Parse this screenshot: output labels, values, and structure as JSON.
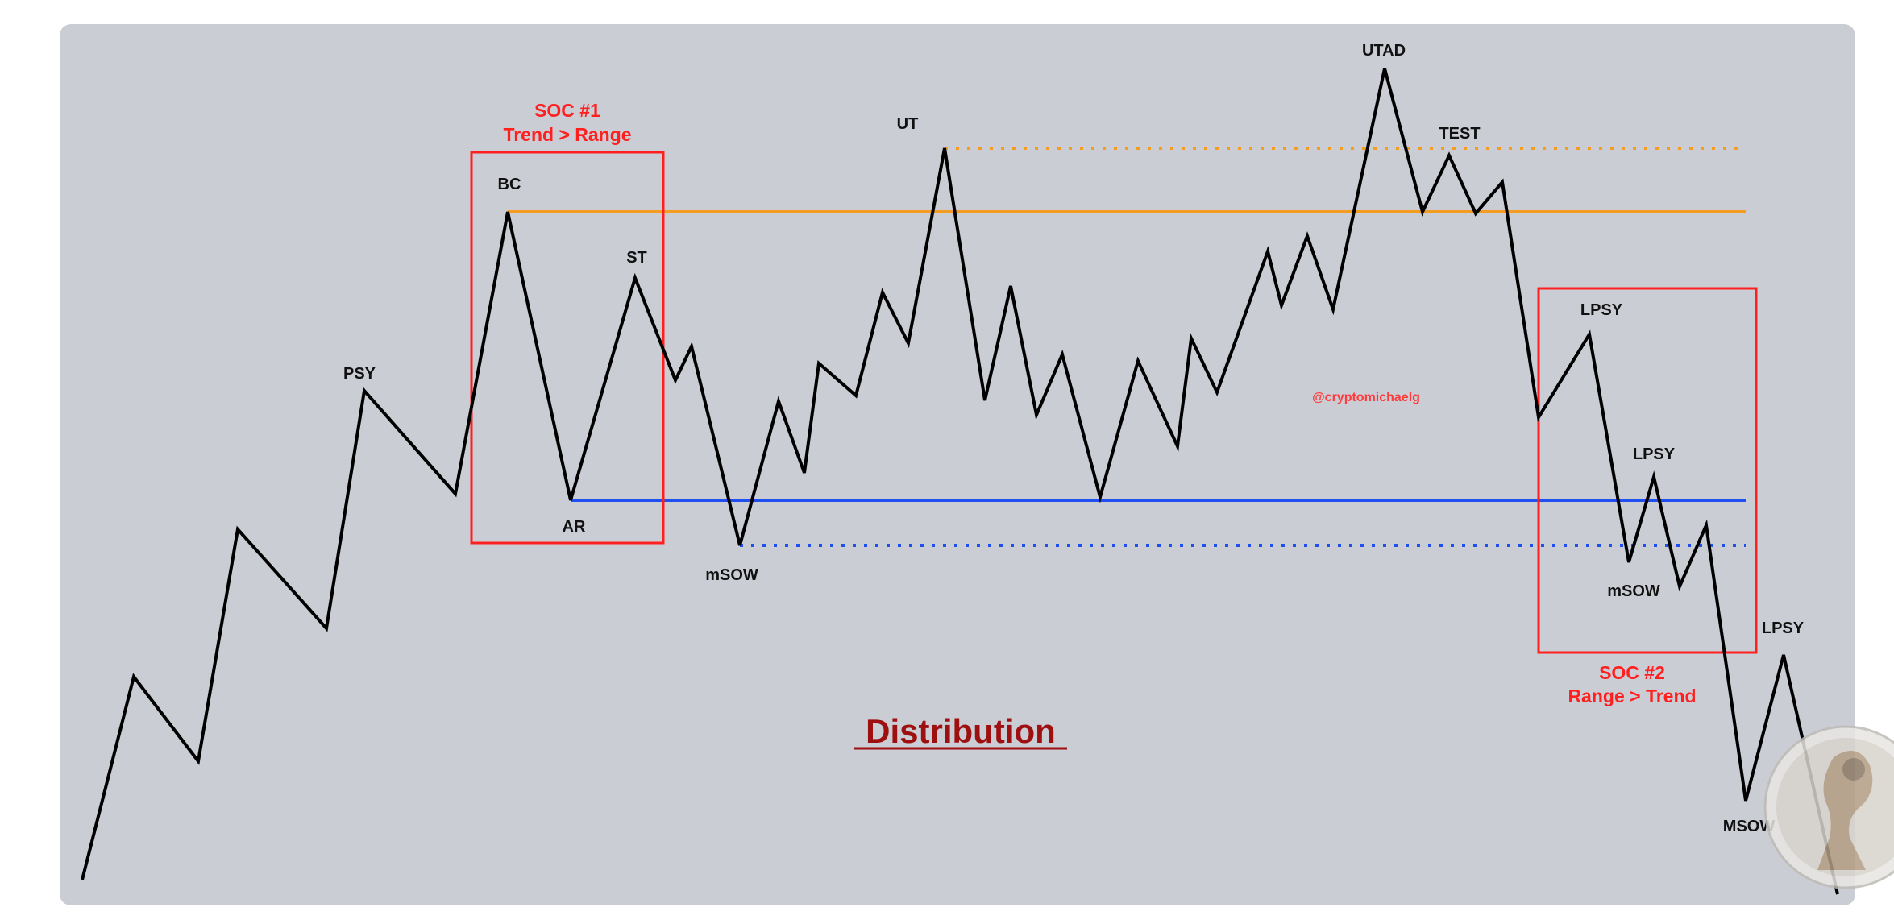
{
  "diagram": {
    "title": "Distribution",
    "watermark": "@cryptomichaelg",
    "colors": {
      "panel": "#cbcdd5",
      "price_line": "#000000",
      "resistance": "#f39c1f",
      "support": "#1f4ff0",
      "soc_box": "#ff1f1f",
      "title": "#9e0f0f"
    },
    "soc1": {
      "line1": "SOC #1",
      "line2": "Trend > Range"
    },
    "soc2": {
      "line1": "SOC #2",
      "line2": "Range > Trend"
    },
    "points": {
      "psy": "PSY",
      "bc": "BC",
      "ar": "AR",
      "st": "ST",
      "msow_left": "mSOW",
      "ut": "UT",
      "utad": "UTAD",
      "test": "TEST",
      "lpsy_1": "LPSY",
      "lpsy_2": "LPSY",
      "msow_right": "mSOW",
      "lpsy_3": "LPSY",
      "msow_final": "MSOW"
    },
    "logo_icon": "round-avatar-logo-icon"
  }
}
